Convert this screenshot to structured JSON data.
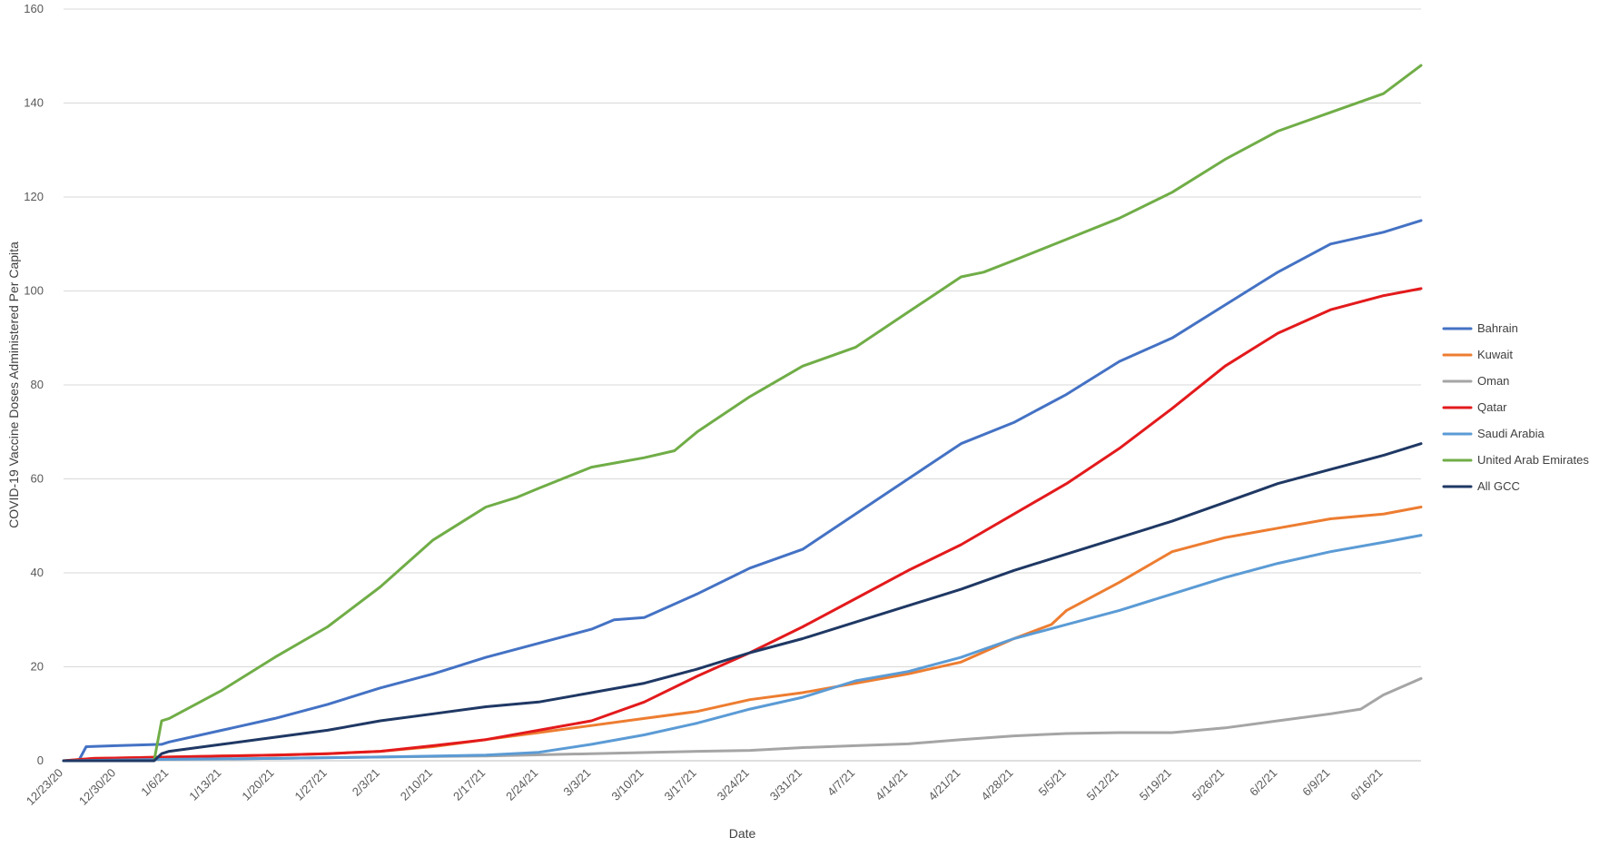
{
  "chart_data": {
    "type": "line",
    "title": "",
    "xlabel": "Date",
    "ylabel": "COVID-19 Vaccine Doses Administered Per Capita",
    "ylim": [
      0,
      160
    ],
    "yticks": [
      0,
      20,
      40,
      60,
      80,
      100,
      120,
      140,
      160
    ],
    "grid": true,
    "legend_position": "right",
    "x_start": "12/23/20",
    "x_end": "6/21/21",
    "x_tick_labels": [
      "12/23/20",
      "12/30/20",
      "1/6/21",
      "1/13/21",
      "1/20/21",
      "1/27/21",
      "2/3/21",
      "2/10/21",
      "2/17/21",
      "2/24/21",
      "3/3/21",
      "3/10/21",
      "3/17/21",
      "3/24/21",
      "3/31/21",
      "4/7/21",
      "4/14/21",
      "4/21/21",
      "4/28/21",
      "5/5/21",
      "5/12/21",
      "5/19/21",
      "5/26/21",
      "6/2/21",
      "6/9/21",
      "6/16/21"
    ],
    "series": [
      {
        "name": "Bahrain",
        "color": "#4472C4",
        "x": [
          "12/23/20",
          "12/25/20",
          "12/26/20",
          "12/30/20",
          "1/5/21",
          "1/6/21",
          "1/13/21",
          "1/20/21",
          "1/27/21",
          "2/3/21",
          "2/10/21",
          "2/17/21",
          "2/24/21",
          "3/3/21",
          "3/6/21",
          "3/10/21",
          "3/17/21",
          "3/24/21",
          "3/31/21",
          "4/7/21",
          "4/14/21",
          "4/21/21",
          "4/28/21",
          "5/5/21",
          "5/12/21",
          "5/19/21",
          "5/26/21",
          "6/2/21",
          "6/9/21",
          "6/16/21",
          "6/21/21"
        ],
        "values": [
          0,
          0,
          3,
          3.2,
          3.5,
          4,
          6.5,
          9,
          12,
          15.5,
          18.5,
          22,
          25,
          28,
          30,
          30.5,
          35.5,
          41,
          45,
          52.5,
          60,
          67.5,
          72,
          78,
          85,
          90,
          97,
          104,
          110,
          112.5,
          115
        ]
      },
      {
        "name": "Kuwait",
        "color": "#ED7D31",
        "x": [
          "12/23/20",
          "12/27/20",
          "1/6/21",
          "1/13/21",
          "1/20/21",
          "1/27/21",
          "2/3/21",
          "2/10/21",
          "2/17/21",
          "2/24/21",
          "3/3/21",
          "3/10/21",
          "3/17/21",
          "3/24/21",
          "3/31/21",
          "4/7/21",
          "4/14/21",
          "4/21/21",
          "4/28/21",
          "5/3/21",
          "5/5/21",
          "5/12/21",
          "5/19/21",
          "5/26/21",
          "6/2/21",
          "6/9/21",
          "6/16/21",
          "6/21/21"
        ],
        "values": [
          0,
          0.5,
          0.8,
          1,
          1.2,
          1.5,
          2,
          3,
          4.5,
          6,
          7.5,
          9,
          10.5,
          13,
          14.5,
          16.5,
          18.5,
          21,
          26,
          29,
          32,
          38,
          44.5,
          47.5,
          49.5,
          51.5,
          52.5,
          54
        ]
      },
      {
        "name": "Oman",
        "color": "#A5A5A5",
        "x": [
          "12/23/20",
          "1/6/21",
          "1/20/21",
          "2/3/21",
          "2/17/21",
          "3/3/21",
          "3/17/21",
          "3/24/21",
          "3/31/21",
          "4/7/21",
          "4/14/21",
          "4/21/21",
          "4/28/21",
          "5/5/21",
          "5/12/21",
          "5/19/21",
          "5/26/21",
          "6/2/21",
          "6/9/21",
          "6/13/21",
          "6/16/21",
          "6/21/21"
        ],
        "values": [
          0,
          0.3,
          0.5,
          0.8,
          1,
          1.5,
          2,
          2.2,
          2.8,
          3.2,
          3.6,
          4.5,
          5.3,
          5.8,
          6,
          6,
          7,
          8.5,
          10,
          11,
          14,
          17.5
        ]
      },
      {
        "name": "Qatar",
        "color": "#E31A1C",
        "x": [
          "12/23/20",
          "12/27/20",
          "1/6/21",
          "1/13/21",
          "1/20/21",
          "1/27/21",
          "2/3/21",
          "2/10/21",
          "2/17/21",
          "2/24/21",
          "3/3/21",
          "3/10/21",
          "3/17/21",
          "3/24/21",
          "3/31/21",
          "4/7/21",
          "4/14/21",
          "4/21/21",
          "4/28/21",
          "5/5/21",
          "5/12/21",
          "5/19/21",
          "5/26/21",
          "6/2/21",
          "6/9/21",
          "6/16/21",
          "6/21/21"
        ],
        "values": [
          0,
          0.5,
          0.8,
          1,
          1.2,
          1.5,
          2,
          3.2,
          4.5,
          6.5,
          8.5,
          12.5,
          18,
          23,
          28.5,
          34.5,
          40.5,
          46,
          52.5,
          59,
          66.5,
          75,
          84,
          91,
          96,
          99,
          100.5
        ]
      },
      {
        "name": "Saudi Arabia",
        "color": "#5B9BD5",
        "x": [
          "12/23/20",
          "1/6/21",
          "1/20/21",
          "2/3/21",
          "2/17/21",
          "2/24/21",
          "3/3/21",
          "3/10/21",
          "3/17/21",
          "3/24/21",
          "3/31/21",
          "4/7/21",
          "4/14/21",
          "4/21/21",
          "4/28/21",
          "5/5/21",
          "5/12/21",
          "5/19/21",
          "5/26/21",
          "6/2/21",
          "6/9/21",
          "6/16/21",
          "6/21/21"
        ],
        "values": [
          0,
          0.3,
          0.5,
          0.8,
          1.2,
          1.8,
          3.5,
          5.5,
          8,
          11,
          13.5,
          17,
          19,
          22,
          26,
          29,
          32,
          35.5,
          39,
          42,
          44.5,
          46.5,
          48
        ]
      },
      {
        "name": "United Arab Emirates",
        "color": "#70AD47",
        "x": [
          "12/23/20",
          "1/4/21",
          "1/5/21",
          "1/6/21",
          "1/13/21",
          "1/20/21",
          "1/27/21",
          "2/3/21",
          "2/10/21",
          "2/17/21",
          "2/21/21",
          "2/24/21",
          "3/3/21",
          "3/10/21",
          "3/14/21",
          "3/17/21",
          "3/24/21",
          "3/31/21",
          "4/7/21",
          "4/14/21",
          "4/21/21",
          "4/24/21",
          "4/28/21",
          "5/5/21",
          "5/12/21",
          "5/19/21",
          "5/26/21",
          "6/2/21",
          "6/9/21",
          "6/16/21",
          "6/21/21"
        ],
        "values": [
          0,
          0,
          8.5,
          9,
          15,
          22,
          28.5,
          37,
          47,
          54,
          56,
          58,
          62.5,
          64.5,
          66,
          70,
          77.5,
          84,
          88,
          95.5,
          103,
          104,
          106.5,
          111,
          115.5,
          121,
          128,
          134,
          138,
          142,
          148
        ]
      },
      {
        "name": "All GCC",
        "color": "#1F3864",
        "x": [
          "12/23/20",
          "1/4/21",
          "1/5/21",
          "1/6/21",
          "1/13/21",
          "1/20/21",
          "1/27/21",
          "2/3/21",
          "2/10/21",
          "2/17/21",
          "2/24/21",
          "3/3/21",
          "3/10/21",
          "3/17/21",
          "3/24/21",
          "3/31/21",
          "4/7/21",
          "4/14/21",
          "4/21/21",
          "4/28/21",
          "5/5/21",
          "5/12/21",
          "5/19/21",
          "5/26/21",
          "6/2/21",
          "6/9/21",
          "6/16/21",
          "6/21/21"
        ],
        "values": [
          0,
          0,
          1.5,
          2,
          3.5,
          5,
          6.5,
          8.5,
          10,
          11.5,
          12.5,
          14.5,
          16.5,
          19.5,
          23,
          26,
          29.5,
          33,
          36.5,
          40.5,
          44,
          47.5,
          51,
          55,
          59,
          62,
          65,
          67.5
        ]
      }
    ]
  }
}
